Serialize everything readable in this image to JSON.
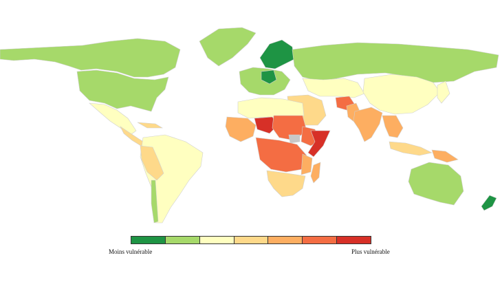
{
  "colors": {
    "scale": [
      "#1e9444",
      "#a6d96a",
      "#ffffc0",
      "#fed98a",
      "#fdae61",
      "#f46d43",
      "#d73027"
    ],
    "no_data": "#c8c8c8"
  },
  "legend": {
    "low_label": "Moins vulnérable",
    "high_label": "Plus vulnérable"
  }
}
